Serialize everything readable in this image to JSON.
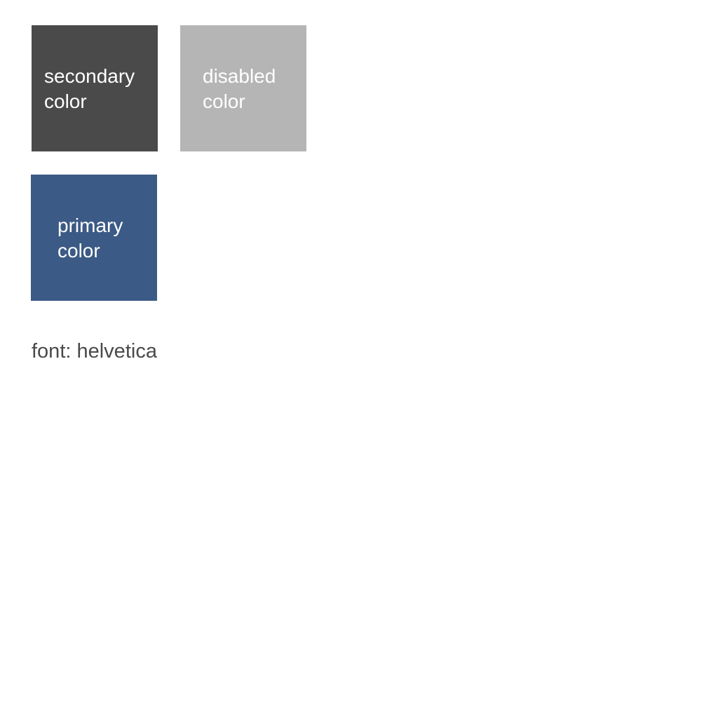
{
  "swatches": {
    "secondary": {
      "line1": "secondary",
      "line2": "color",
      "color": "#4a4a4a"
    },
    "disabled": {
      "line1": "disabled",
      "line2": "color",
      "color": "#b5b5b5"
    },
    "primary": {
      "line1": "primary",
      "line2": "color",
      "color": "#3b5a85"
    }
  },
  "font_note": "font: helvetica"
}
